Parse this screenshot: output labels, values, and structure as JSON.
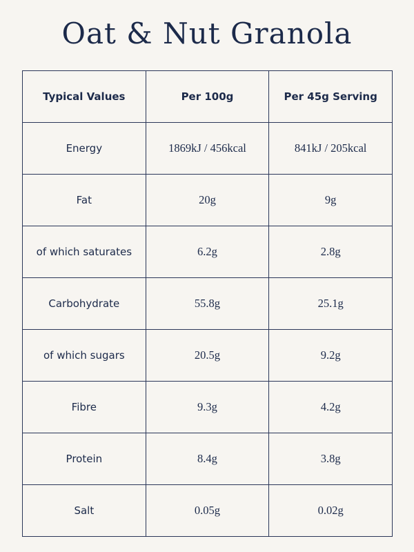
{
  "title": "Oat & Nut Granola",
  "colors": {
    "text": "#1c2a4a",
    "background": "#f7f5f1"
  },
  "table": {
    "headers": [
      "Typical Values",
      "Per 100g",
      "Per 45g Serving"
    ],
    "rows": [
      [
        "Energy",
        "1869kJ / 456kcal",
        "841kJ / 205kcal"
      ],
      [
        "Fat",
        "20g",
        "9g"
      ],
      [
        "of which saturates",
        "6.2g",
        "2.8g"
      ],
      [
        "Carbohydrate",
        "55.8g",
        "25.1g"
      ],
      [
        "of which sugars",
        "20.5g",
        "9.2g"
      ],
      [
        "Fibre",
        "9.3g",
        "4.2g"
      ],
      [
        "Protein",
        "8.4g",
        "3.8g"
      ],
      [
        "Salt",
        "0.05g",
        "0.02g"
      ]
    ]
  }
}
